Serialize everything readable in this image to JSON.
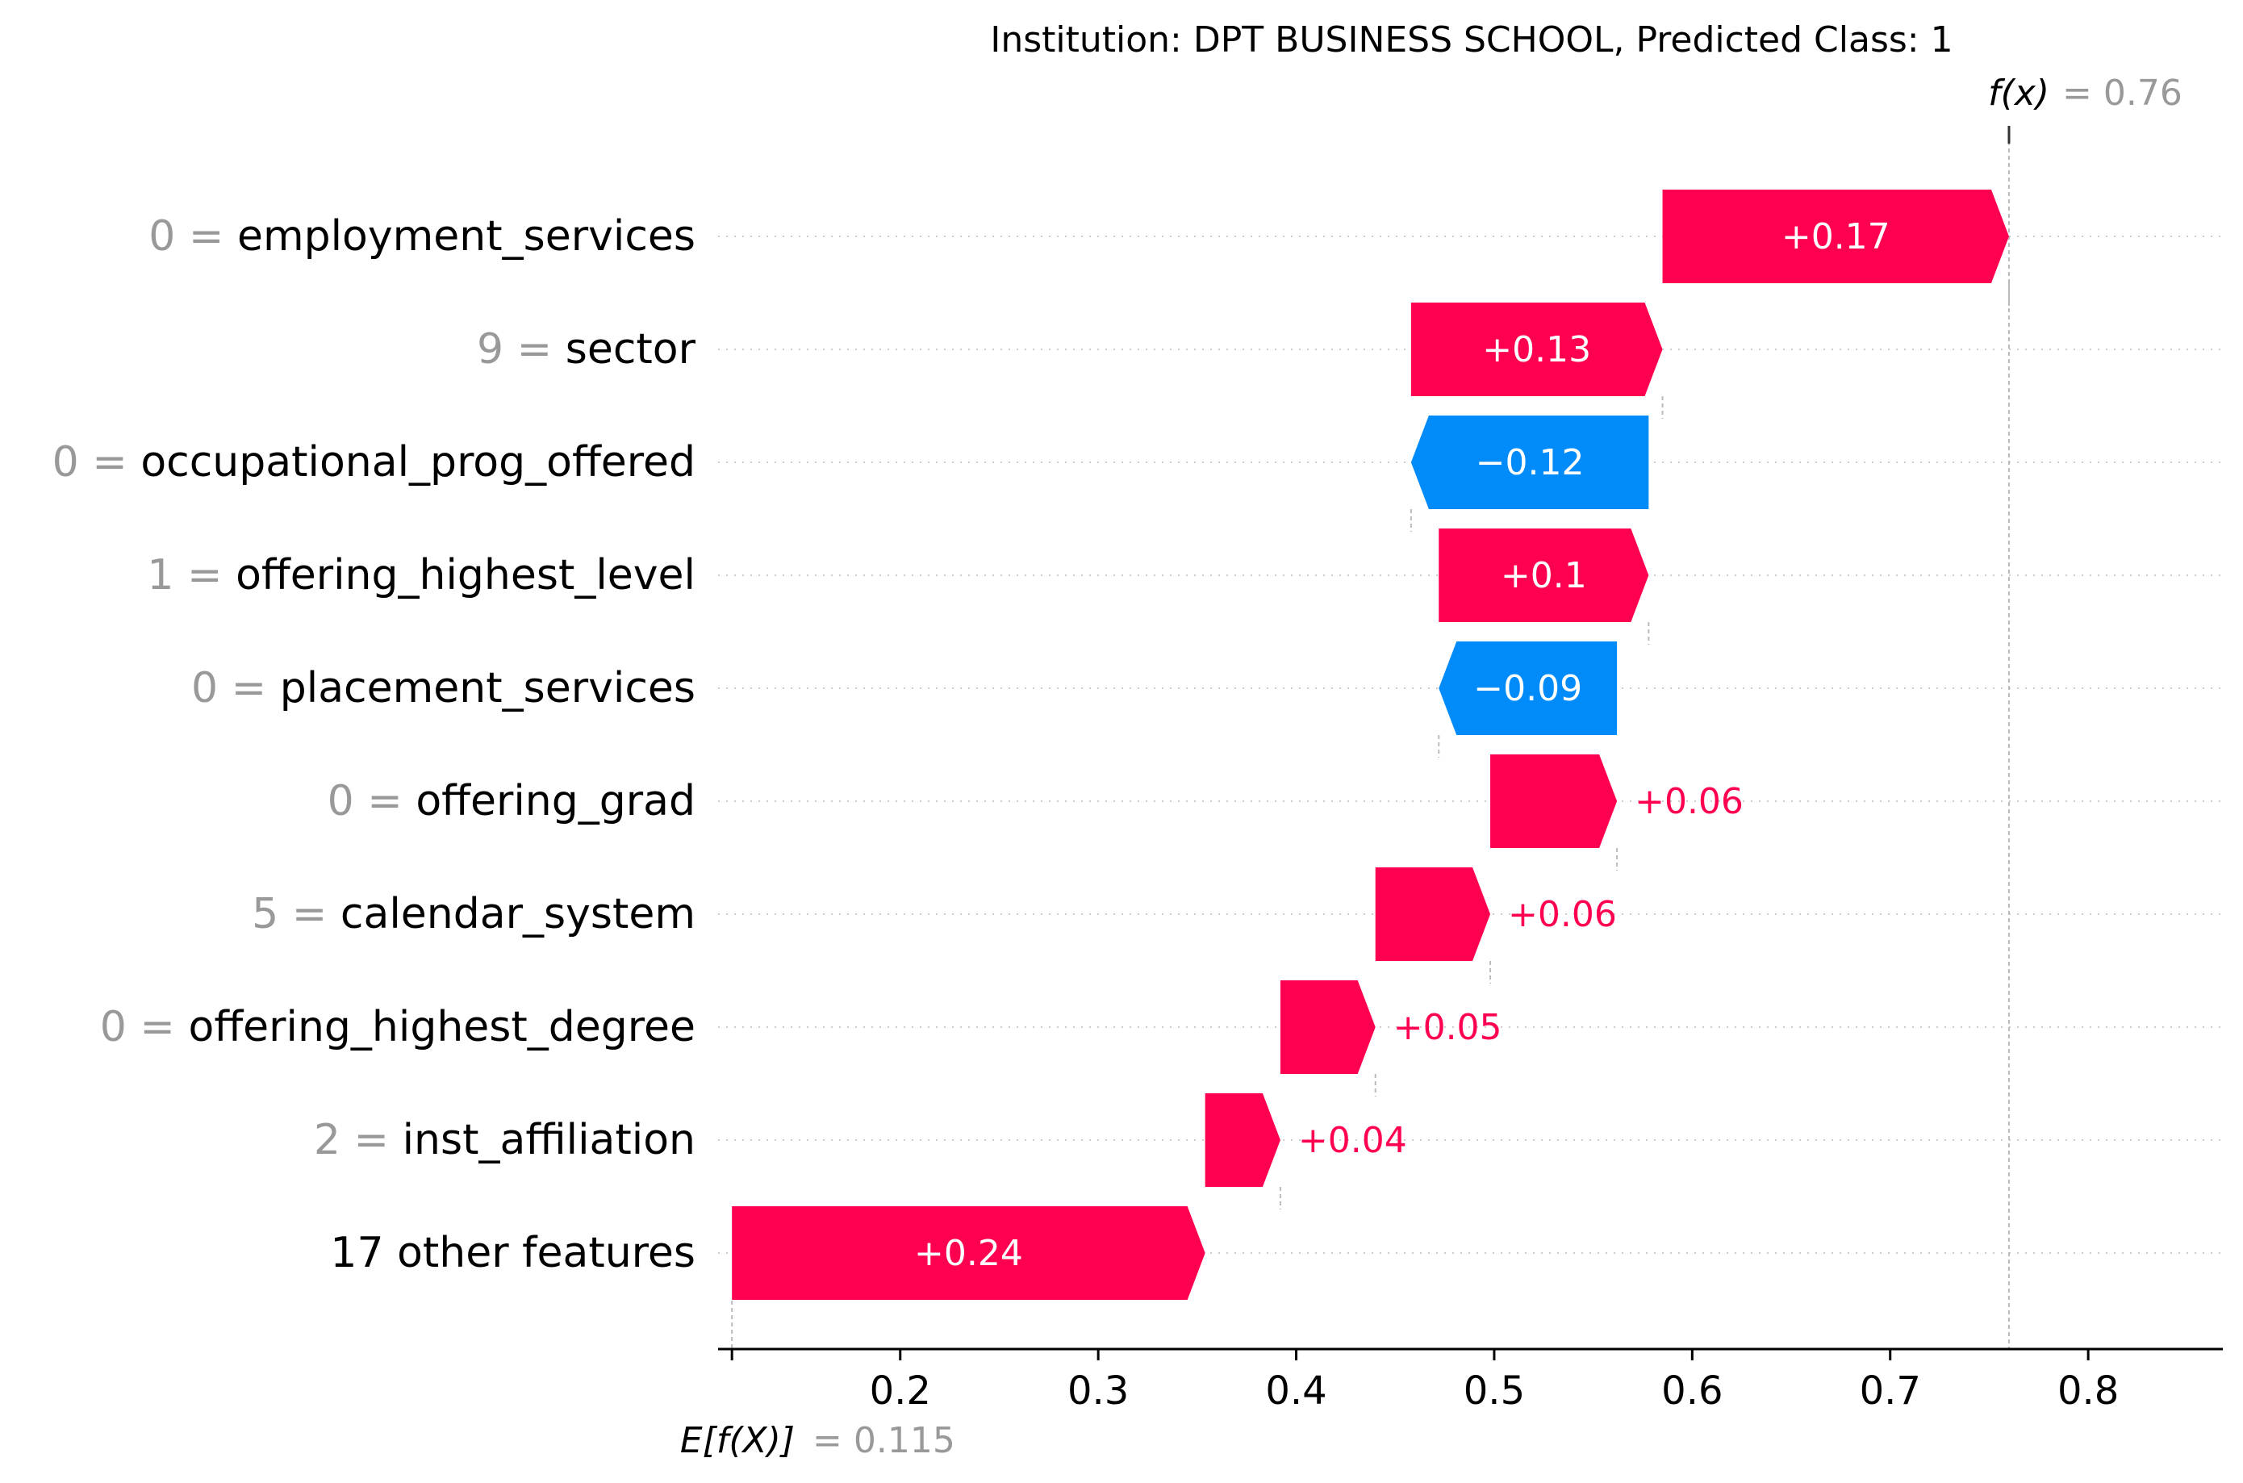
{
  "chart_data": {
    "type": "waterfall",
    "title": "Institution: DPT BUSINESS SCHOOL, Predicted Class: 1",
    "fx": {
      "label": "f(x)",
      "value_text": "= 0.76",
      "value": 0.76
    },
    "base": {
      "label": "E[f(X)]",
      "value_text": "= 0.115",
      "value": 0.115
    },
    "features": [
      {
        "value": "0",
        "name": "employment_services",
        "contribution": 0.17,
        "text": "+0.17",
        "start": 0.585,
        "end": 0.76
      },
      {
        "value": "9",
        "name": "sector",
        "contribution": 0.13,
        "text": "+0.13",
        "start": 0.458,
        "end": 0.585
      },
      {
        "value": "0",
        "name": "occupational_prog_offered",
        "contribution": -0.12,
        "text": "−0.12",
        "start": 0.578,
        "end": 0.458
      },
      {
        "value": "1",
        "name": "offering_highest_level",
        "contribution": 0.1,
        "text": "+0.1",
        "start": 0.472,
        "end": 0.578
      },
      {
        "value": "0",
        "name": "placement_services",
        "contribution": -0.09,
        "text": "−0.09",
        "start": 0.562,
        "end": 0.472
      },
      {
        "value": "0",
        "name": "offering_grad",
        "contribution": 0.06,
        "text": "+0.06",
        "start": 0.498,
        "end": 0.562
      },
      {
        "value": "5",
        "name": "calendar_system",
        "contribution": 0.06,
        "text": "+0.06",
        "start": 0.44,
        "end": 0.498
      },
      {
        "value": "0",
        "name": "offering_highest_degree",
        "contribution": 0.05,
        "text": "+0.05",
        "start": 0.392,
        "end": 0.44
      },
      {
        "value": "2",
        "name": "inst_affiliation",
        "contribution": 0.04,
        "text": "+0.04",
        "start": 0.354,
        "end": 0.392
      },
      {
        "value": "",
        "name": "17 other features",
        "contribution": 0.24,
        "text": "+0.24",
        "start": 0.115,
        "end": 0.354
      }
    ],
    "xaxis": {
      "ticks": [
        0.2,
        0.3,
        0.4,
        0.5,
        0.6,
        0.7,
        0.8
      ],
      "tick_labels": [
        "0.2",
        "0.3",
        "0.4",
        "0.5",
        "0.6",
        "0.7",
        "0.8"
      ],
      "xlim": [
        0.108,
        0.868
      ]
    },
    "colors": {
      "positive": "#ff0051",
      "negative": "#008bfb",
      "feature_value": "#999999",
      "text": "#000000",
      "guide": "#bbbbbb",
      "grid": "#cccccc"
    }
  }
}
